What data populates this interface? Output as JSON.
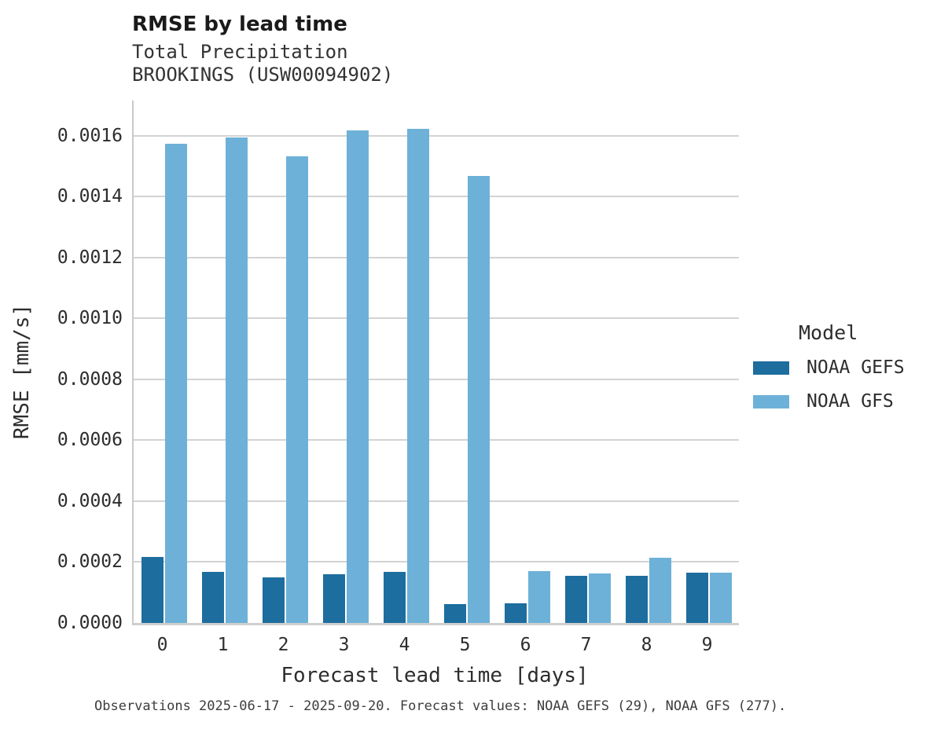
{
  "header": {
    "title": "RMSE by lead time",
    "subtitle_variable": "Total Precipitation",
    "subtitle_station": "BROOKINGS (USW00094902)"
  },
  "legend": {
    "title": "Model",
    "items": [
      {
        "label": "NOAA GEFS",
        "color": "#1d6d9e"
      },
      {
        "label": "NOAA GFS",
        "color": "#6db1d8"
      }
    ]
  },
  "caption": "Observations 2025-06-17 - 2025-09-20. Forecast values: NOAA GEFS (29), NOAA GFS (277).",
  "colors": {
    "gefs_bar": "#1d6d9e",
    "gfs_bar": "#6db1d8",
    "gridline": "#d3d3d3",
    "axis": "#c9c9c9",
    "text": "#2d2d2d",
    "background": "#ffffff"
  },
  "chart_data": {
    "type": "bar",
    "title": "RMSE by lead time",
    "subtitle": [
      "Total Precipitation",
      "BROOKINGS (USW00094902)"
    ],
    "xlabel": "Forecast lead time [days]",
    "ylabel": "RMSE [mm/s]",
    "categories": [
      "0",
      "1",
      "2",
      "3",
      "4",
      "5",
      "6",
      "7",
      "8",
      "9"
    ],
    "series": [
      {
        "name": "NOAA GEFS",
        "color": "#1d6d9e",
        "values": [
          0.000218,
          0.000169,
          0.00015,
          0.000161,
          0.000167,
          6.1e-05,
          6.5e-05,
          0.000154,
          0.000154,
          0.000165
        ]
      },
      {
        "name": "NOAA GFS",
        "color": "#6db1d8",
        "values": [
          0.001575,
          0.001595,
          0.001533,
          0.001617,
          0.001622,
          0.001468,
          0.00017,
          0.000162,
          0.000215,
          0.000165
        ]
      }
    ],
    "ylim": [
      0,
      0.001716
    ],
    "yticks": [
      0.0,
      0.0002,
      0.0004,
      0.0006,
      0.0008,
      0.001,
      0.0012,
      0.0014,
      0.0016
    ],
    "ytick_labels": [
      "0.0000",
      "0.0002",
      "0.0004",
      "0.0006",
      "0.0008",
      "0.0010",
      "0.0012",
      "0.0014",
      "0.0016"
    ],
    "grid": "horizontal",
    "legend_position": "right",
    "legend_title": "Model"
  }
}
